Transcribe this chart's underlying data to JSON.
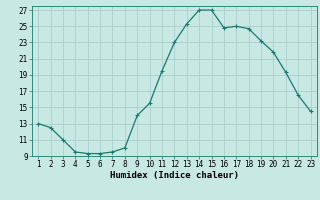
{
  "x": [
    1,
    2,
    3,
    4,
    5,
    6,
    7,
    8,
    9,
    10,
    11,
    12,
    13,
    14,
    15,
    16,
    17,
    18,
    19,
    20,
    21,
    22,
    23
  ],
  "y": [
    13,
    12.5,
    11,
    9.5,
    9.3,
    9.3,
    9.5,
    10,
    14,
    15.5,
    19.5,
    23,
    25.3,
    27,
    27,
    24.8,
    25,
    24.7,
    23.2,
    21.8,
    19.3,
    16.5,
    14.5
  ],
  "line_color": "#1a7a6e",
  "marker": "+",
  "bg_color": "#c8e8e4",
  "grid_color": "#aacfcb",
  "xlabel": "Humidex (Indice chaleur)",
  "xlim": [
    0.5,
    23.5
  ],
  "ylim": [
    9,
    27.5
  ],
  "yticks": [
    9,
    11,
    13,
    15,
    17,
    19,
    21,
    23,
    25,
    27
  ],
  "xticks": [
    1,
    2,
    3,
    4,
    5,
    6,
    7,
    8,
    9,
    10,
    11,
    12,
    13,
    14,
    15,
    16,
    17,
    18,
    19,
    20,
    21,
    22,
    23
  ],
  "tick_fontsize": 5.5,
  "xlabel_fontsize": 6.5,
  "linewidth": 0.9,
  "markersize": 3.5
}
